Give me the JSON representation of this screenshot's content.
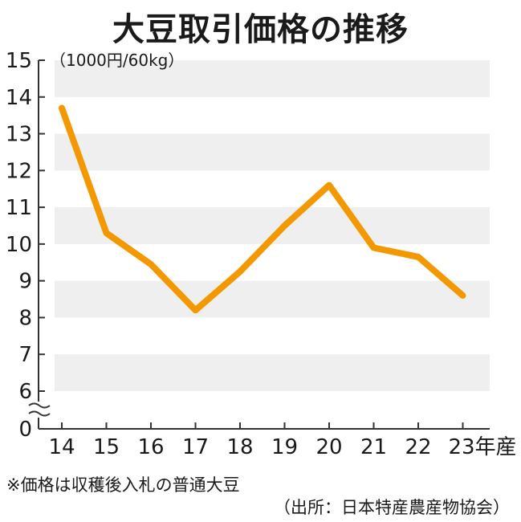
{
  "title": "大豆取引価格の推移",
  "notes": {
    "line1": "※価格は収穫後入札の普通大豆",
    "line2": "（出所：日本特産農産物協会）"
  },
  "chart_data": {
    "type": "line",
    "title": "大豆取引価格の推移",
    "ylabel": "（1000円/60kg）",
    "xlabel": "",
    "x_suffix": "年産",
    "categories": [
      "14",
      "15",
      "16",
      "17",
      "18",
      "19",
      "20",
      "21",
      "22",
      "23"
    ],
    "series": [
      {
        "values": [
          13.7,
          10.3,
          9.45,
          8.2,
          9.25,
          10.5,
          11.6,
          9.9,
          9.65,
          8.6
        ]
      }
    ],
    "yticks": [
      "0",
      "6",
      "7",
      "8",
      "9",
      "10",
      "11",
      "12",
      "13",
      "14",
      "15"
    ],
    "ylim": [
      6,
      15
    ],
    "axis_break": true,
    "grid": "alternating bands",
    "colors": {
      "line": "#F39800",
      "band": "#EFEFEF",
      "axis": "#333333"
    }
  }
}
